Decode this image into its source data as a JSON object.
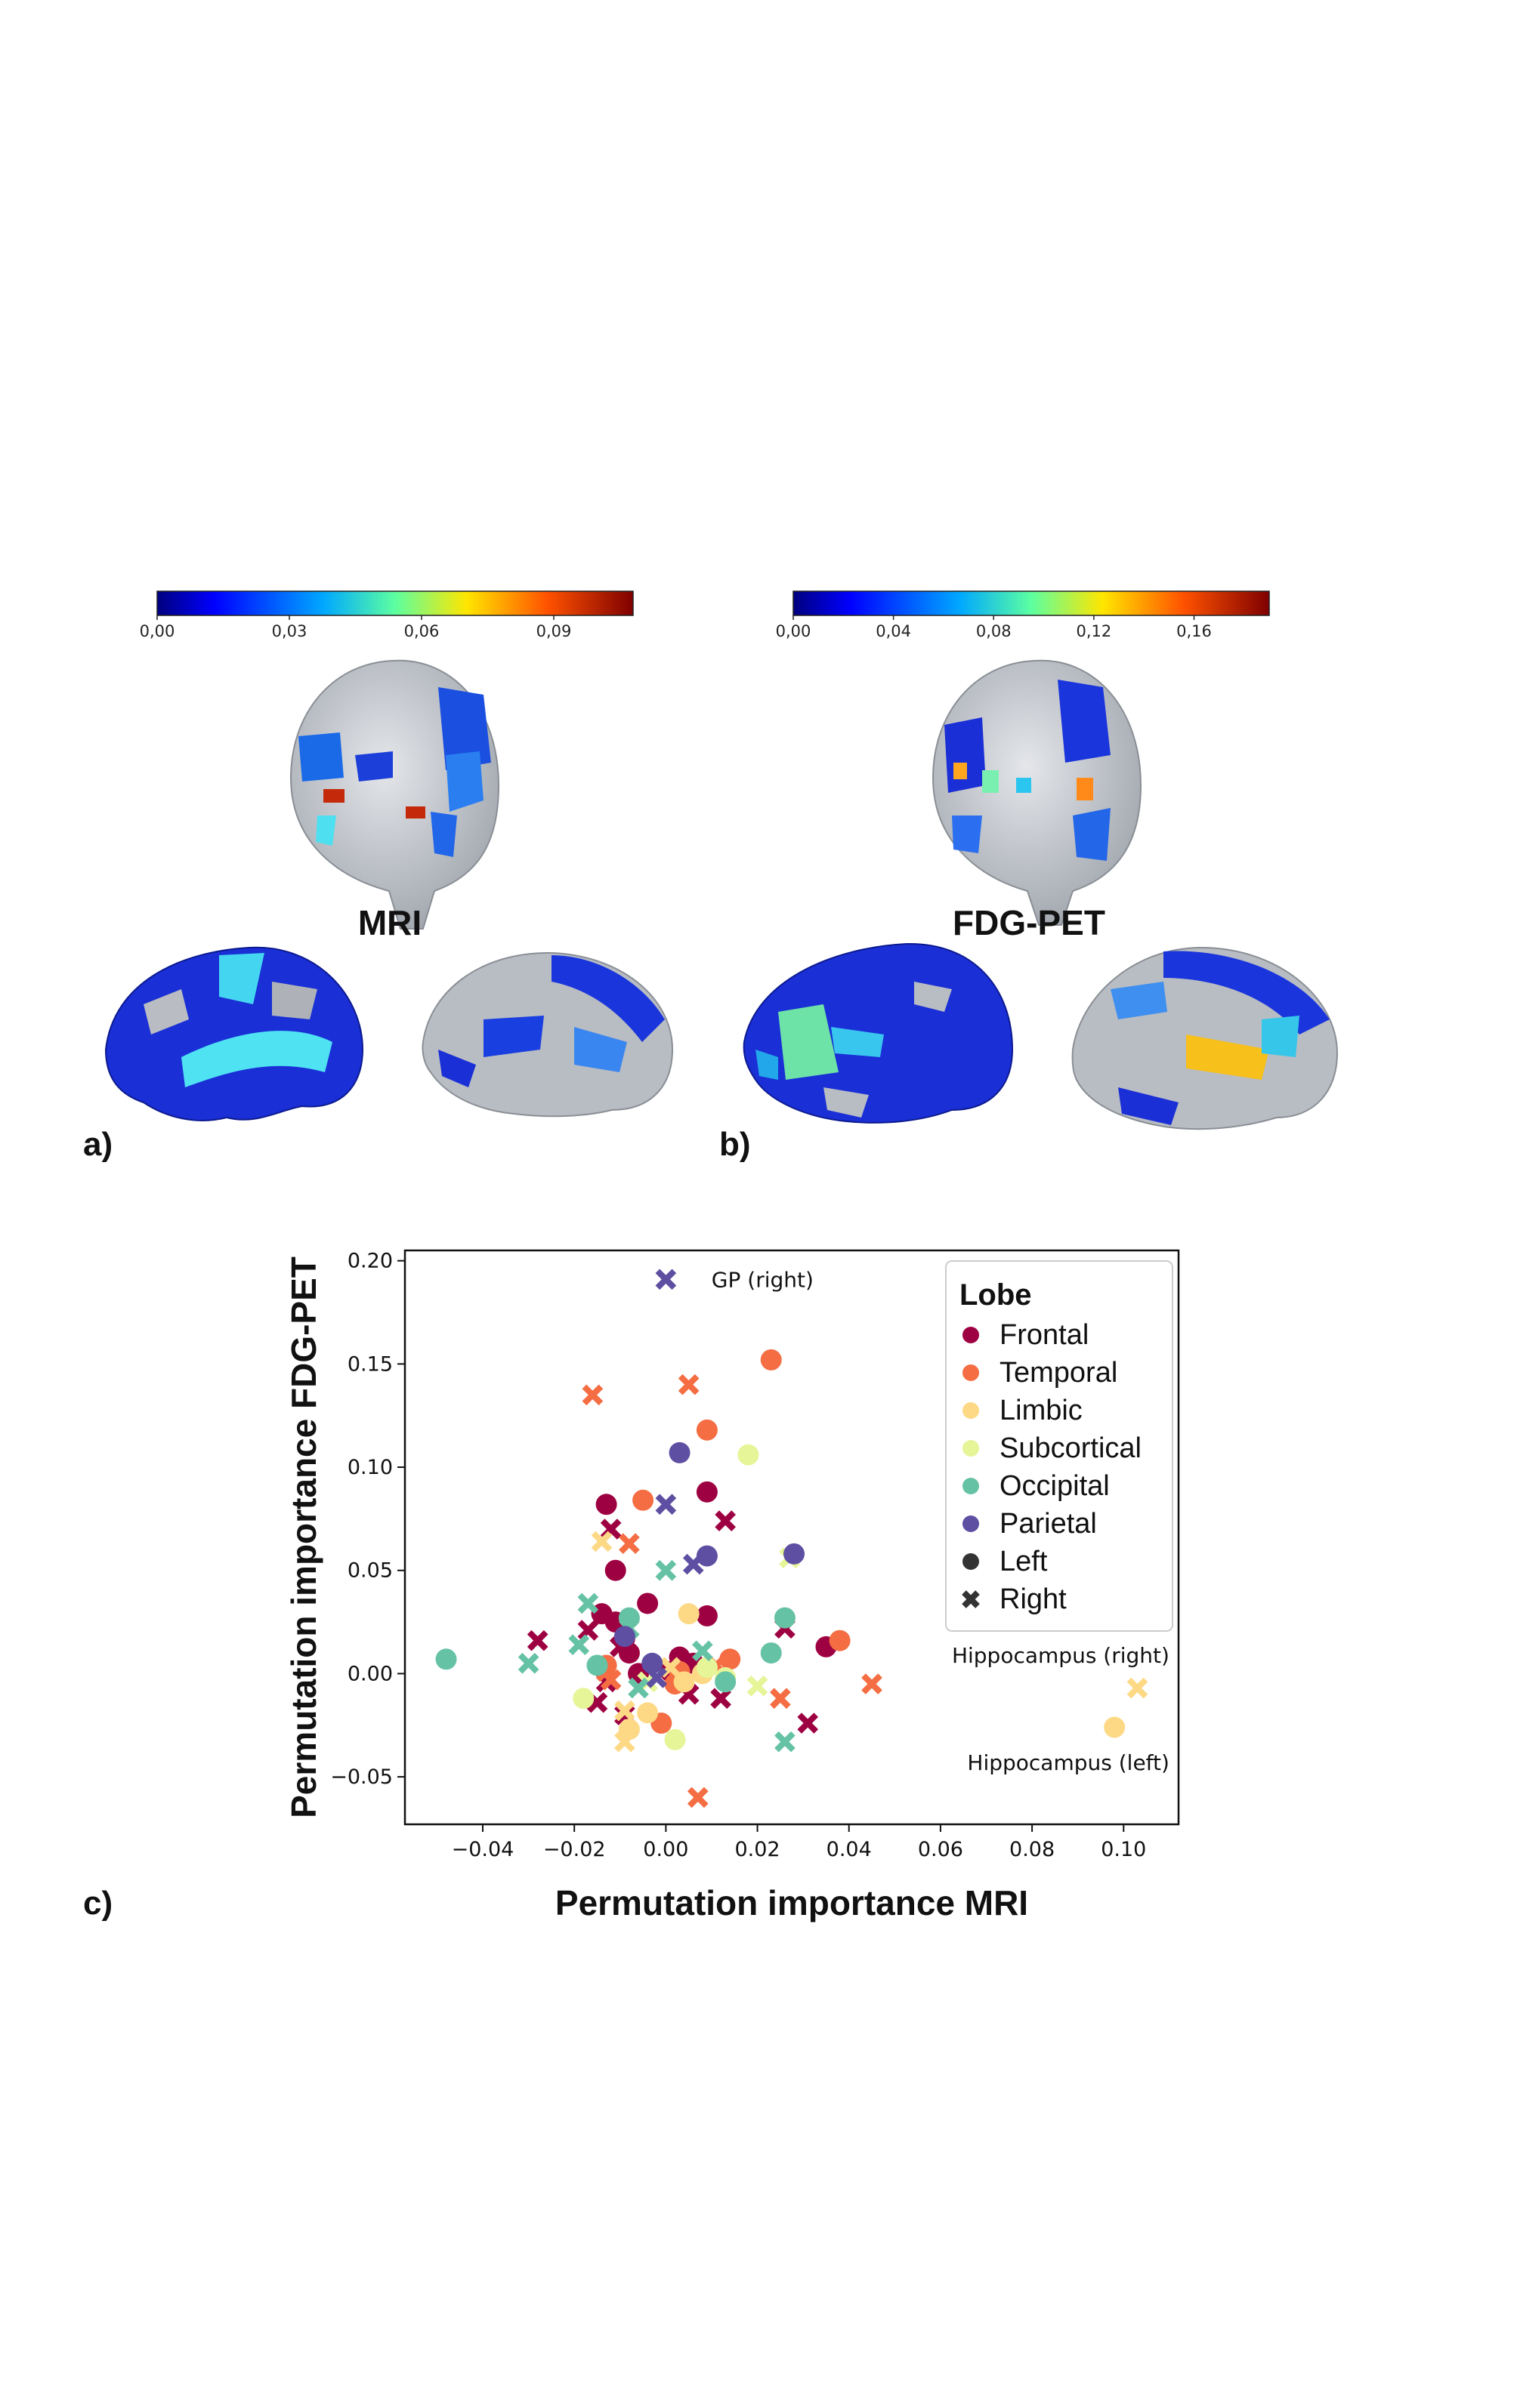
{
  "panels": {
    "a_label": "a)",
    "b_label": "b)",
    "c_label": "c)",
    "mri_title": "MRI",
    "pet_title": "FDG-PET"
  },
  "colorbars": {
    "mri": {
      "ticks": [
        "0,00",
        "0,03",
        "0,06",
        "0,09"
      ],
      "range": [
        0,
        0.108
      ],
      "tick_values": [
        0,
        0.03,
        0.06,
        0.09
      ]
    },
    "pet": {
      "ticks": [
        "0,00",
        "0,04",
        "0,08",
        "0,12",
        "0,16"
      ],
      "range": [
        0,
        0.19
      ],
      "tick_values": [
        0,
        0.04,
        0.08,
        0.12,
        0.16
      ]
    },
    "colormap": "jet"
  },
  "colors": {
    "Frontal": "#9e0142",
    "Temporal": "#f46d43",
    "Limbic": "#fdd985",
    "Subcortical": "#e6f598",
    "Occipital": "#66c2a5",
    "Parietal": "#5e4fa2",
    "marker_key": "#333333"
  },
  "chart_data": {
    "type": "scatter",
    "xlabel": "Permutation importance MRI",
    "ylabel": "Permutation importance FDG-PET",
    "xlim": [
      -0.057,
      0.112
    ],
    "ylim": [
      -0.073,
      0.205
    ],
    "xticks": [
      -0.04,
      -0.02,
      0.0,
      0.02,
      0.04,
      0.06,
      0.08,
      0.1
    ],
    "xtick_labels": [
      "−0.04",
      "−0.02",
      "0.00",
      "0.02",
      "0.04",
      "0.06",
      "0.08",
      "0.10"
    ],
    "yticks": [
      -0.05,
      0.0,
      0.05,
      0.1,
      0.15,
      0.2
    ],
    "ytick_labels": [
      "−0.05",
      "0.00",
      "0.05",
      "0.10",
      "0.15",
      "0.20"
    ],
    "grid": false,
    "legend": {
      "title": "Lobe",
      "placement": "top-right",
      "entries": [
        {
          "label": "Frontal",
          "lobe": "Frontal",
          "marker": "circle"
        },
        {
          "label": "Temporal",
          "lobe": "Temporal",
          "marker": "circle"
        },
        {
          "label": "Limbic",
          "lobe": "Limbic",
          "marker": "circle"
        },
        {
          "label": "Subcortical",
          "lobe": "Subcortical",
          "marker": "circle"
        },
        {
          "label": "Occipital",
          "lobe": "Occipital",
          "marker": "circle"
        },
        {
          "label": "Parietal",
          "lobe": "Parietal",
          "marker": "circle"
        },
        {
          "label": "Left",
          "lobe": "marker_key",
          "marker": "circle"
        },
        {
          "label": "Right",
          "lobe": "marker_key",
          "marker": "x"
        }
      ]
    },
    "annotations": [
      {
        "text": "GP (right)",
        "x": 0.007,
        "y": 0.191,
        "anchor": "start"
      },
      {
        "text": "Hippocampus (right)",
        "x": 0.111,
        "y": 0.009,
        "anchor": "end"
      },
      {
        "text": "Hippocampus (left)",
        "x": 0.111,
        "y": -0.043,
        "anchor": "end"
      }
    ],
    "series": [
      {
        "name": "Frontal",
        "side": "Left",
        "points": [
          [
            -0.013,
            0.082
          ],
          [
            -0.011,
            0.05
          ],
          [
            -0.014,
            0.029
          ],
          [
            -0.004,
            0.034
          ],
          [
            0.009,
            0.028
          ],
          [
            -0.009,
            0.017
          ],
          [
            -0.008,
            0.01
          ],
          [
            -0.006,
            0.0
          ],
          [
            0.003,
            0.008
          ],
          [
            0.006,
            0.005
          ],
          [
            0.009,
            0.088
          ],
          [
            0.035,
            0.013
          ],
          [
            -0.011,
            0.025
          ],
          [
            0.001,
            0.001
          ]
        ]
      },
      {
        "name": "Frontal",
        "side": "Right",
        "points": [
          [
            -0.012,
            0.07
          ],
          [
            0.013,
            0.074
          ],
          [
            -0.017,
            0.021
          ],
          [
            -0.028,
            0.016
          ],
          [
            -0.01,
            0.013
          ],
          [
            -0.013,
            -0.004
          ],
          [
            -0.009,
            -0.02
          ],
          [
            0.005,
            -0.01
          ],
          [
            0.012,
            -0.012
          ],
          [
            0.026,
            0.022
          ],
          [
            0.031,
            -0.024
          ],
          [
            -0.015,
            -0.014
          ]
        ]
      },
      {
        "name": "Temporal",
        "side": "Left",
        "points": [
          [
            0.023,
            0.152
          ],
          [
            0.009,
            0.118
          ],
          [
            -0.005,
            0.084
          ],
          [
            0.038,
            0.016
          ],
          [
            0.014,
            0.007
          ],
          [
            0.002,
            -0.005
          ],
          [
            -0.001,
            -0.024
          ],
          [
            0.003,
            0.001
          ],
          [
            -0.013,
            0.004
          ]
        ]
      },
      {
        "name": "Temporal",
        "side": "Right",
        "points": [
          [
            -0.016,
            0.135
          ],
          [
            0.005,
            0.14
          ],
          [
            -0.008,
            0.063
          ],
          [
            0.045,
            -0.005
          ],
          [
            0.025,
            -0.012
          ],
          [
            0.007,
            -0.06
          ],
          [
            -0.013,
            0.001
          ],
          [
            -0.012,
            -0.003
          ],
          [
            0.011,
            0.004
          ]
        ]
      },
      {
        "name": "Limbic",
        "side": "Left",
        "points": [
          [
            0.098,
            -0.026
          ],
          [
            0.005,
            0.029
          ],
          [
            -0.008,
            -0.027
          ],
          [
            -0.004,
            -0.019
          ],
          [
            0.004,
            -0.004
          ],
          [
            0.008,
            0.0
          ]
        ]
      },
      {
        "name": "Limbic",
        "side": "Right",
        "points": [
          [
            0.103,
            -0.007
          ],
          [
            -0.014,
            0.064
          ],
          [
            -0.009,
            -0.033
          ],
          [
            -0.009,
            -0.018
          ],
          [
            0.001,
            0.003
          ]
        ]
      },
      {
        "name": "Subcortical",
        "side": "Left",
        "points": [
          [
            0.018,
            0.106
          ],
          [
            -0.018,
            -0.012
          ],
          [
            0.002,
            -0.032
          ],
          [
            0.009,
            0.003
          ],
          [
            0.013,
            -0.002
          ]
        ]
      },
      {
        "name": "Subcortical",
        "side": "Right",
        "points": [
          [
            0.027,
            0.056
          ],
          [
            0.02,
            -0.006
          ],
          [
            -0.004,
            -0.004
          ]
        ]
      },
      {
        "name": "Occipital",
        "side": "Left",
        "points": [
          [
            -0.048,
            0.007
          ],
          [
            0.026,
            0.027
          ],
          [
            0.023,
            0.01
          ],
          [
            -0.008,
            0.027
          ],
          [
            -0.015,
            0.004
          ],
          [
            0.013,
            -0.004
          ]
        ]
      },
      {
        "name": "Occipital",
        "side": "Right",
        "points": [
          [
            -0.03,
            0.005
          ],
          [
            -0.017,
            0.034
          ],
          [
            -0.019,
            0.014
          ],
          [
            0.0,
            0.05
          ],
          [
            0.008,
            0.011
          ],
          [
            0.026,
            -0.033
          ],
          [
            -0.006,
            -0.007
          ],
          [
            -0.008,
            0.022
          ]
        ]
      },
      {
        "name": "Parietal",
        "side": "Left",
        "points": [
          [
            0.003,
            0.107
          ],
          [
            0.009,
            0.057
          ],
          [
            0.028,
            0.058
          ],
          [
            -0.003,
            0.005
          ],
          [
            -0.009,
            0.018
          ]
        ]
      },
      {
        "name": "Parietal",
        "side": "Right",
        "points": [
          [
            0.0,
            0.082
          ],
          [
            0.006,
            0.053
          ],
          [
            -0.002,
            -0.002
          ]
        ]
      }
    ],
    "gp_point": {
      "name": "Parietal",
      "side": "Right",
      "point": [
        0.0,
        0.191
      ]
    }
  }
}
